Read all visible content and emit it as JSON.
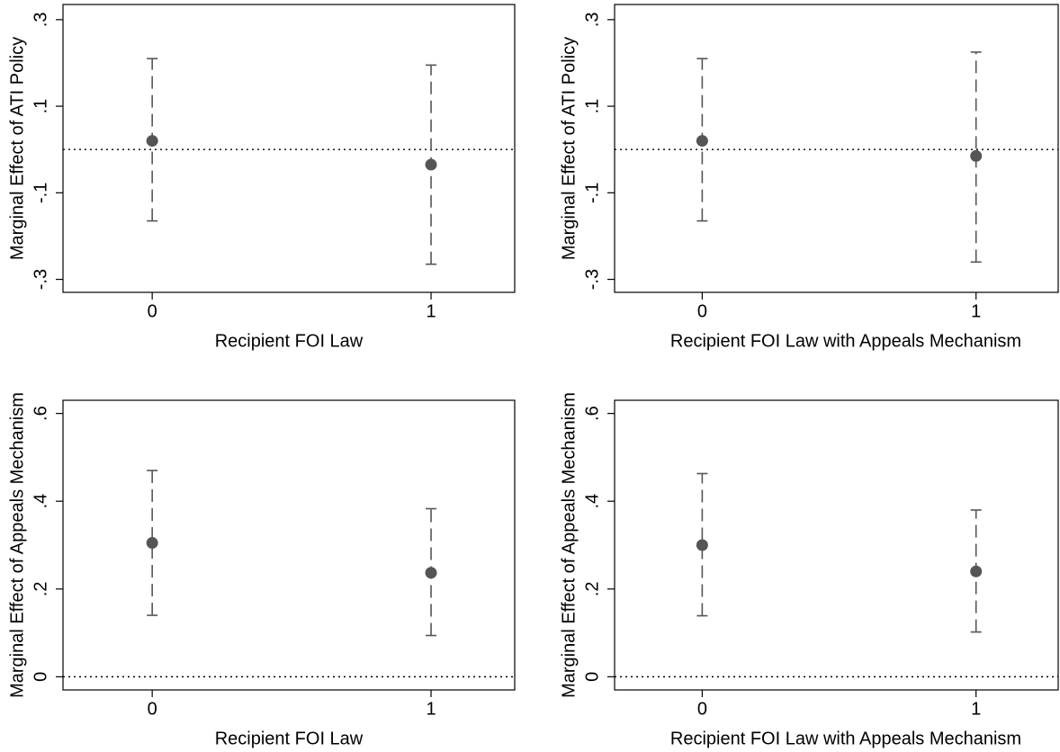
{
  "chart_data": [
    {
      "type": "errorbar",
      "ylabel": "Marginal Effect of ATI Policy",
      "xlabel": "Recipient FOI Law",
      "x": [
        0,
        1
      ],
      "values": [
        0.02,
        -0.035
      ],
      "lower": [
        -0.165,
        -0.265
      ],
      "upper": [
        0.21,
        0.195
      ],
      "reference_line": 0,
      "xlim": [
        -0.32,
        1.3
      ],
      "xticks": [
        0,
        1
      ],
      "ylim": [
        -0.33,
        0.335
      ],
      "yticks": [
        {
          "value": -0.3,
          "label": "-.3"
        },
        {
          "value": -0.1,
          "label": "-.1"
        },
        {
          "value": 0.1,
          "label": ".1"
        },
        {
          "value": 0.3,
          "label": ".3"
        }
      ],
      "color": "#555555"
    },
    {
      "type": "errorbar",
      "ylabel": "Marginal Effect of ATI Policy",
      "xlabel": "Recipient FOI Law with Appeals Mechanism",
      "x": [
        0,
        1
      ],
      "values": [
        0.02,
        -0.015
      ],
      "lower": [
        -0.165,
        -0.26
      ],
      "upper": [
        0.21,
        0.225
      ],
      "reference_line": 0,
      "xlim": [
        -0.32,
        1.3
      ],
      "xticks": [
        0,
        1
      ],
      "ylim": [
        -0.33,
        0.335
      ],
      "yticks": [
        {
          "value": -0.3,
          "label": "-.3"
        },
        {
          "value": -0.1,
          "label": "-.1"
        },
        {
          "value": 0.1,
          "label": ".1"
        },
        {
          "value": 0.3,
          "label": ".3"
        }
      ],
      "color": "#555555"
    },
    {
      "type": "errorbar",
      "ylabel": "Marginal Effect of Appeals Mechanism",
      "xlabel": "Recipient FOI Law",
      "x": [
        0,
        1
      ],
      "values": [
        0.305,
        0.237
      ],
      "lower": [
        0.14,
        0.094
      ],
      "upper": [
        0.47,
        0.383
      ],
      "reference_line": 0,
      "xlim": [
        -0.32,
        1.3
      ],
      "xticks": [
        0,
        1
      ],
      "ylim": [
        -0.03,
        0.63
      ],
      "yticks": [
        0,
        {
          "value": 0.2,
          "label": ".2"
        },
        {
          "value": 0.4,
          "label": ".4"
        },
        {
          "value": 0.6,
          "label": ".6"
        }
      ],
      "color": "#555555"
    },
    {
      "type": "errorbar",
      "ylabel": "Marginal Effect of Appeals Mechanism",
      "xlabel": "Recipient FOI Law with Appeals Mechanism",
      "x": [
        0,
        1
      ],
      "values": [
        0.3,
        0.24
      ],
      "lower": [
        0.139,
        0.102
      ],
      "upper": [
        0.463,
        0.38
      ],
      "reference_line": 0,
      "xlim": [
        -0.32,
        1.3
      ],
      "xticks": [
        0,
        1
      ],
      "ylim": [
        -0.03,
        0.63
      ],
      "yticks": [
        0,
        {
          "value": 0.2,
          "label": ".2"
        },
        {
          "value": 0.4,
          "label": ".4"
        },
        {
          "value": 0.6,
          "label": ".6"
        }
      ],
      "color": "#555555"
    }
  ]
}
